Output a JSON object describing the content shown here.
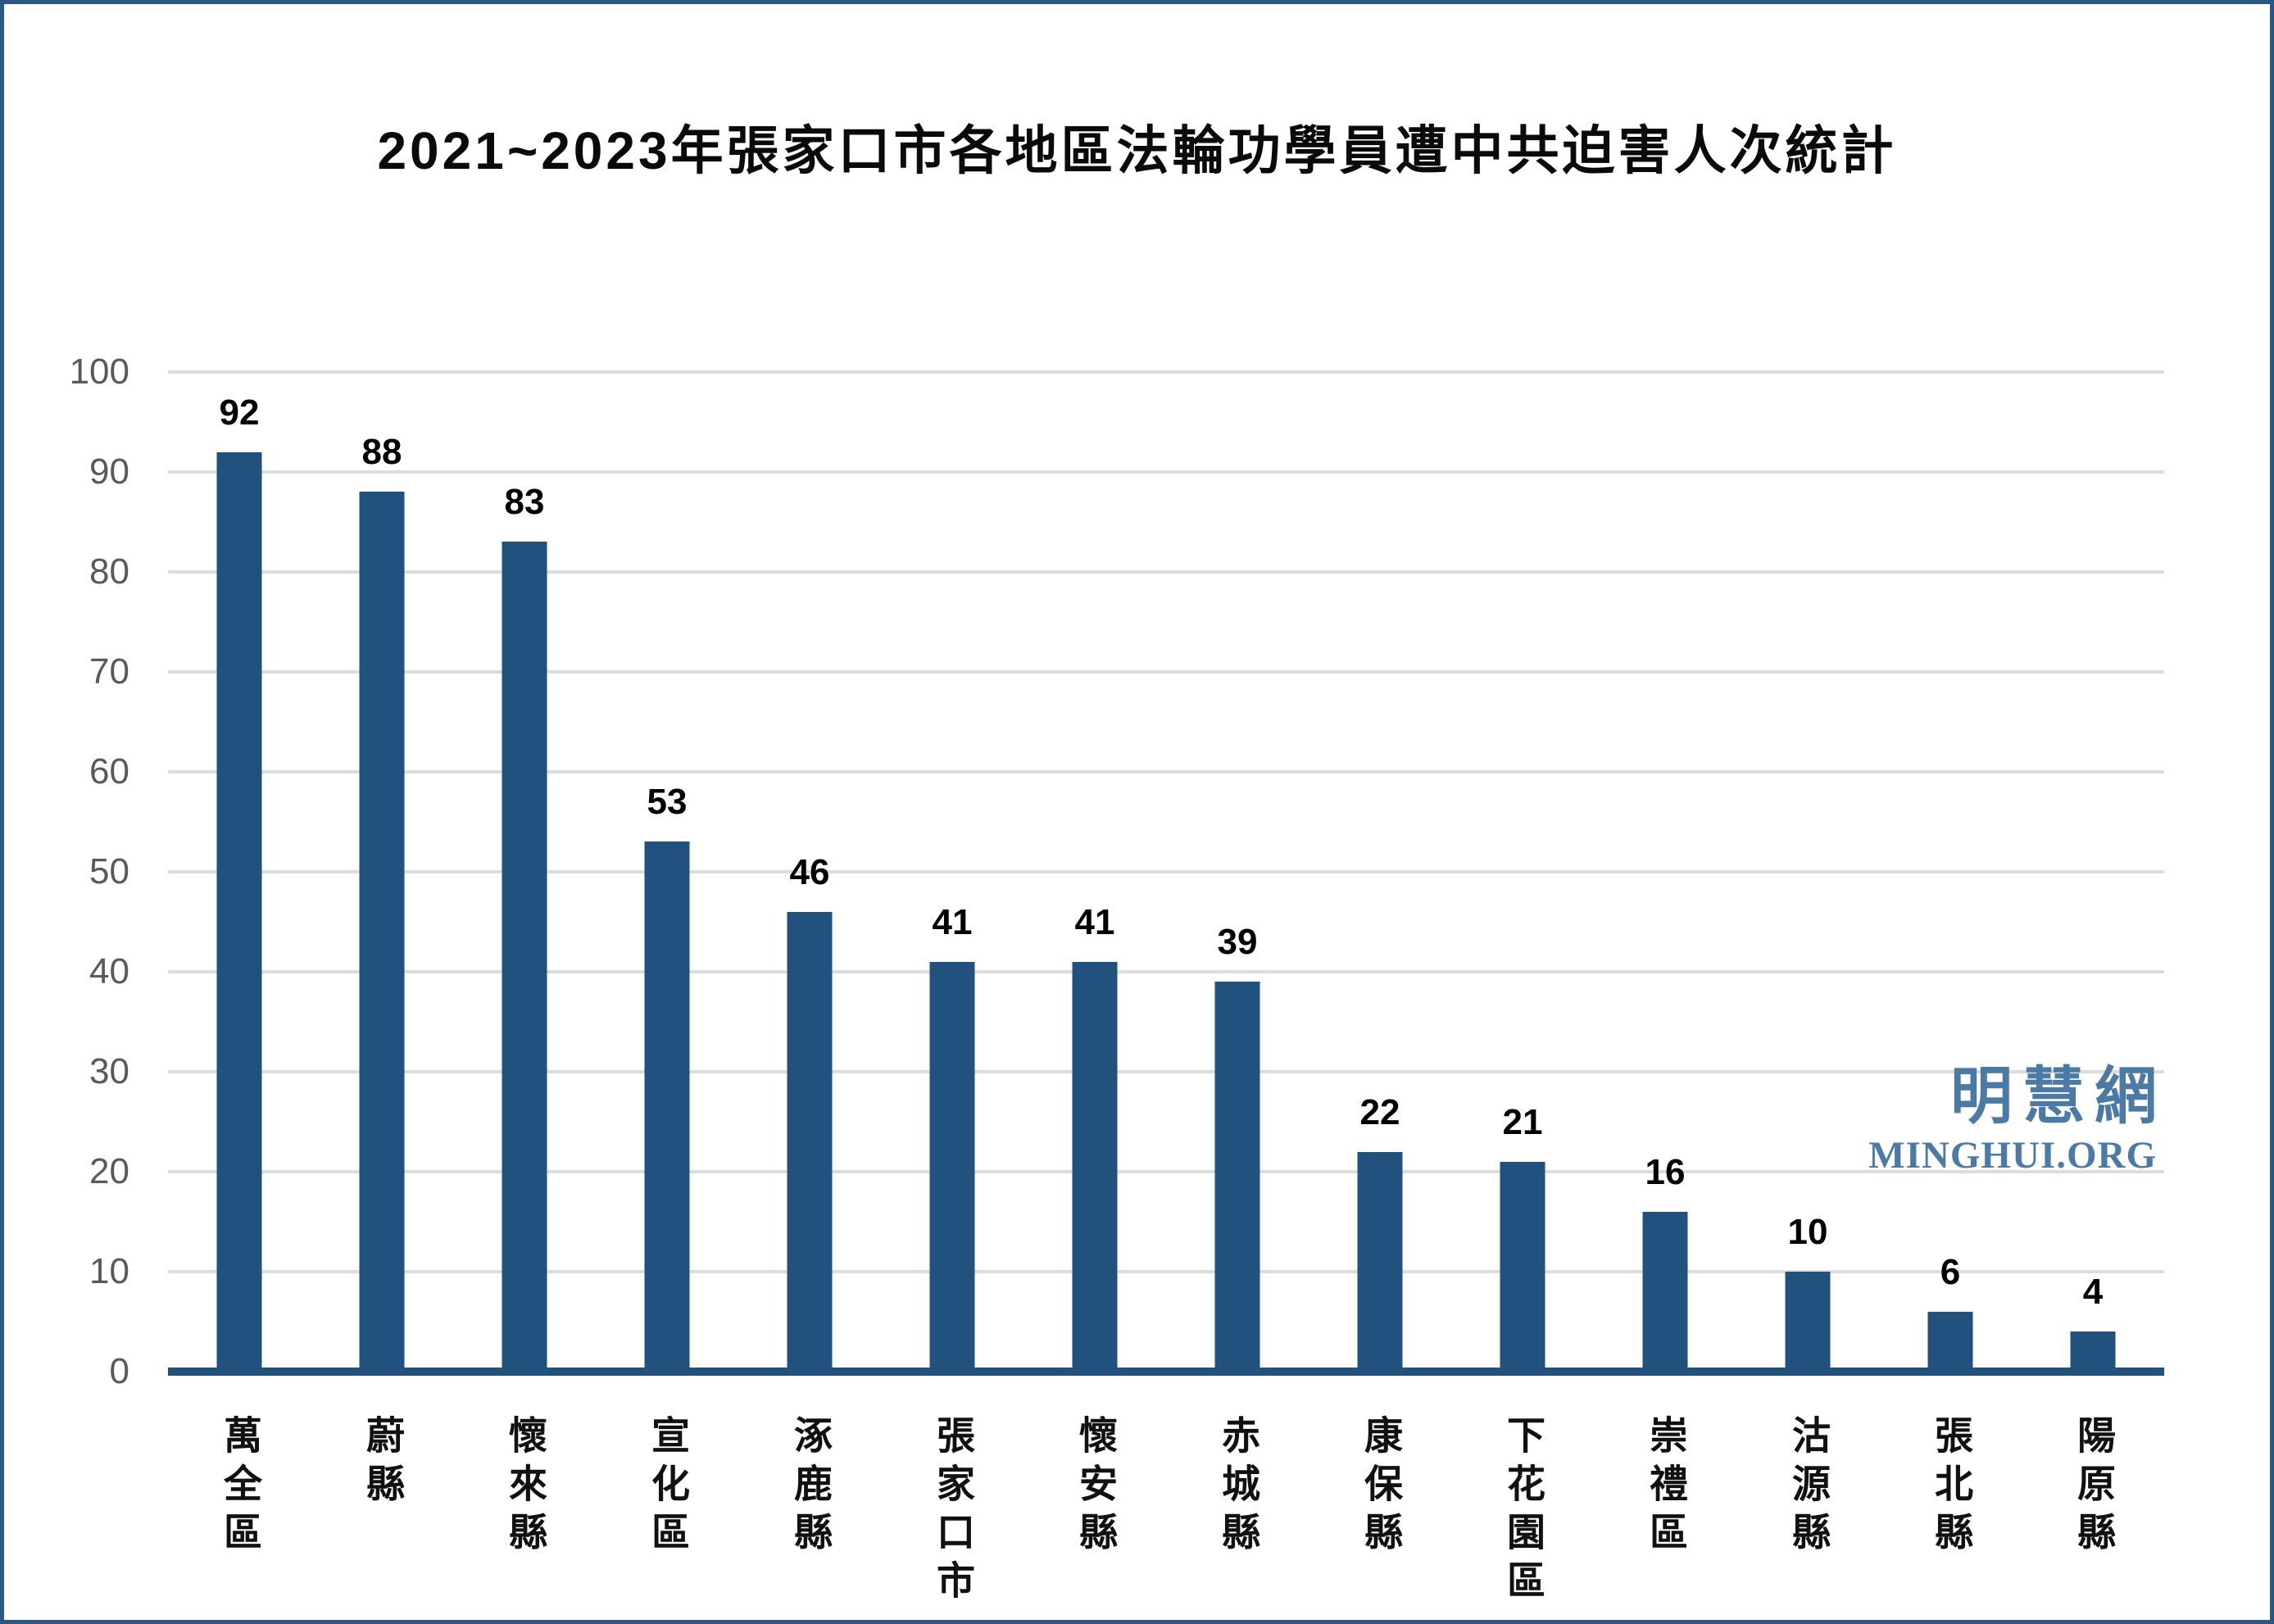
{
  "frame": {
    "border_color": "#2B5784",
    "background": "#FFFFFF"
  },
  "watermark": {
    "cn": "明慧網",
    "en": "MINGHUI.ORG",
    "color": "#4C7AA6"
  },
  "chart_data": {
    "type": "bar",
    "title": "2021~2023年張家口市各地區法輪功學員遭中共迫害人次統計",
    "categories": [
      "萬全區",
      "蔚縣",
      "懷來縣",
      "宣化區",
      "涿鹿縣",
      "張家口市",
      "懷安縣",
      "赤城縣",
      "康保縣",
      "下花園區",
      "崇禮區",
      "沽源縣",
      "張北縣",
      "陽原縣"
    ],
    "values": [
      92,
      88,
      83,
      53,
      46,
      41,
      41,
      39,
      22,
      21,
      16,
      10,
      6,
      4
    ],
    "xlabel": "",
    "ylabel": "",
    "ylim": [
      0,
      100
    ],
    "yticks": [
      0,
      10,
      20,
      30,
      40,
      50,
      60,
      70,
      80,
      90,
      100
    ],
    "grid": true,
    "legend_position": "none",
    "value_labels_shown": true,
    "bar_color": "#21527D",
    "axis_line_color": "#21527D",
    "gridline_color": "#DCDCDC",
    "ytick_label_color": "#595959",
    "value_label_color": "#000000"
  }
}
